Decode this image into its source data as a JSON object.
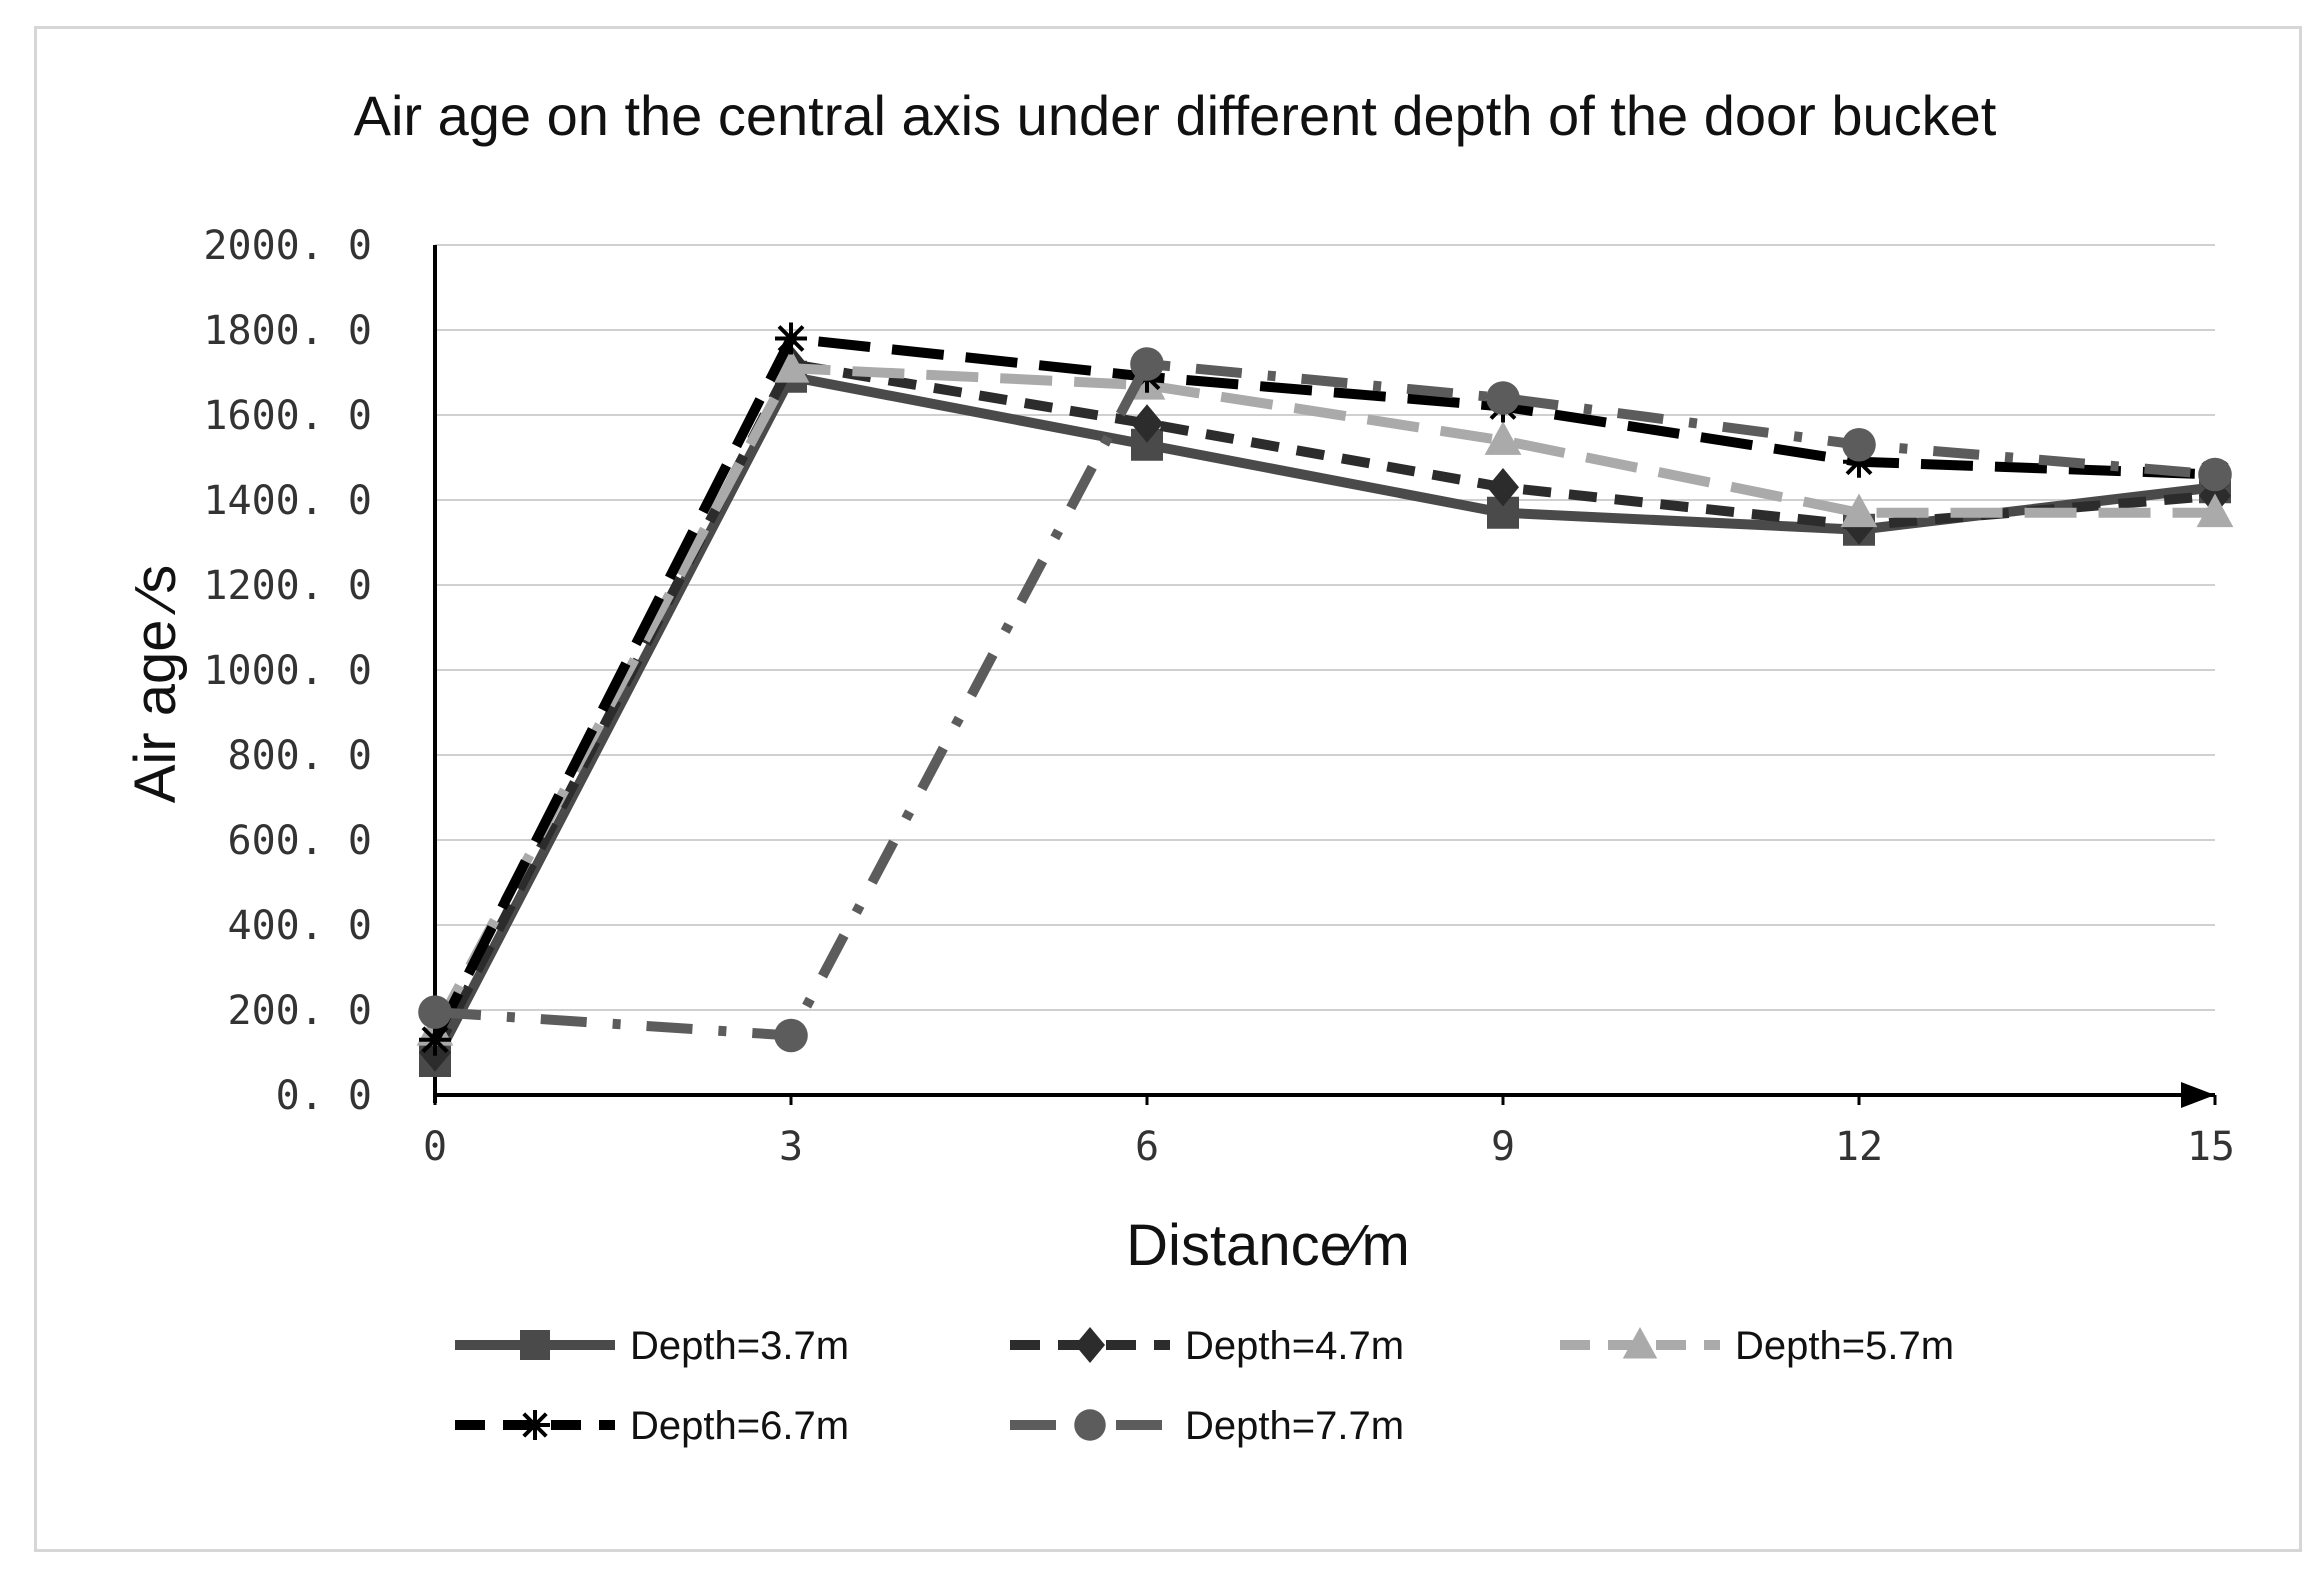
{
  "chart_data": {
    "type": "line",
    "title": "Air age on the central axis under different depth of the door bucket",
    "xlabel": "Distance∕m",
    "ylabel": "Air age ∕s",
    "x": [
      0,
      3,
      6,
      9,
      12,
      15
    ],
    "x_tick_labels": [
      "0",
      "3",
      "6",
      "9",
      "12",
      "15"
    ],
    "xlim": [
      0,
      15
    ],
    "ylim": [
      0,
      2000
    ],
    "y_ticks": [
      0,
      200,
      400,
      600,
      800,
      1000,
      1200,
      1400,
      1600,
      1800,
      2000
    ],
    "y_tick_labels": [
      "0. 0",
      "200. 0",
      "400. 0",
      "600. 0",
      "800. 0",
      "1000. 0",
      "1200. 0",
      "1400. 0",
      "1600. 0",
      "1800. 0",
      "2000. 0"
    ],
    "grid": true,
    "legend_position": "bottom",
    "series": [
      {
        "name": "Depth=3.7m",
        "values": [
          80,
          1690,
          1530,
          1370,
          1330,
          1430
        ],
        "color": "#4a4a4a",
        "dash": "solid",
        "marker": "square"
      },
      {
        "name": "Depth=4.7m",
        "values": [
          100,
          1720,
          1580,
          1430,
          1340,
          1410
        ],
        "color": "#2c2c2c",
        "dash": "dash",
        "marker": "diamond"
      },
      {
        "name": "Depth=5.7m",
        "values": [
          150,
          1710,
          1670,
          1540,
          1370,
          1370
        ],
        "color": "#aaaaaa",
        "dash": "longdash",
        "marker": "triangle"
      },
      {
        "name": "Depth=6.7m",
        "values": [
          130,
          1780,
          1690,
          1620,
          1490,
          1460
        ],
        "color": "#000000",
        "dash": "longdash",
        "marker": "star"
      },
      {
        "name": "Depth=7.7m",
        "values": [
          195,
          140,
          1720,
          1640,
          1530,
          1460
        ],
        "color": "#5c5c5c",
        "dash": "dashdot",
        "marker": "circle"
      }
    ]
  }
}
